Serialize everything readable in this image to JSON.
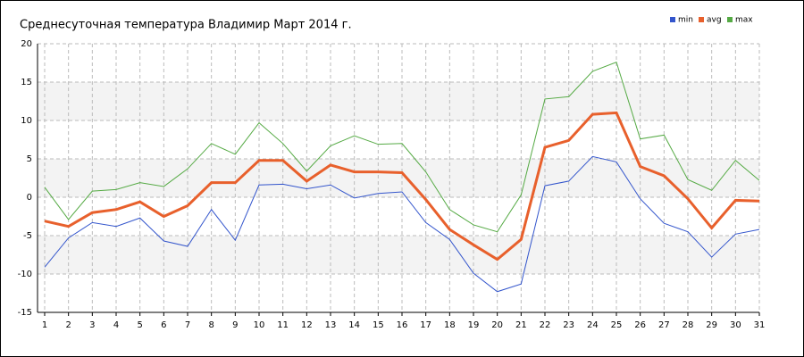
{
  "chart_data": {
    "type": "line",
    "title": "Среднесуточная температура Владимир  Март 2014 г.",
    "x": [
      1,
      2,
      3,
      4,
      5,
      6,
      7,
      8,
      9,
      10,
      11,
      12,
      13,
      14,
      15,
      16,
      17,
      18,
      19,
      20,
      21,
      22,
      23,
      24,
      25,
      26,
      27,
      28,
      29,
      30,
      31
    ],
    "xlim": [
      0.7,
      31
    ],
    "xticks": [
      1,
      2,
      3,
      4,
      5,
      6,
      7,
      8,
      9,
      10,
      11,
      12,
      13,
      14,
      15,
      16,
      17,
      18,
      19,
      20,
      21,
      22,
      23,
      24,
      25,
      26,
      27,
      28,
      29,
      30,
      31
    ],
    "ylim": [
      -15,
      20
    ],
    "yticks": [
      -15,
      -10,
      -5,
      0,
      5,
      10,
      15,
      20
    ],
    "grid": true,
    "legend": "top-right",
    "series": [
      {
        "name": "min",
        "color": "#3355cc",
        "values": [
          -9.1,
          -5.3,
          -3.3,
          -3.8,
          -2.7,
          -5.7,
          -6.4,
          -1.6,
          -5.6,
          1.6,
          1.7,
          1.1,
          1.6,
          -0.1,
          0.5,
          0.7,
          -3.3,
          -5.5,
          -9.9,
          -12.3,
          -11.3,
          1.5,
          2.1,
          5.3,
          4.6,
          -0.2,
          -3.4,
          -4.5,
          -7.8,
          -4.8,
          -4.2
        ]
      },
      {
        "name": "avg",
        "color": "#e8602c",
        "values": [
          -3.1,
          -3.8,
          -2.0,
          -1.6,
          -0.6,
          -2.5,
          -1.1,
          1.9,
          1.9,
          4.8,
          4.8,
          2.1,
          4.2,
          3.3,
          3.3,
          3.2,
          -0.3,
          -4.2,
          -6.2,
          -8.1,
          -5.5,
          6.5,
          7.4,
          10.8,
          11.0,
          4.0,
          2.8,
          -0.2,
          -4.0,
          -0.4,
          -0.5
        ]
      },
      {
        "name": "max",
        "color": "#55aa44",
        "values": [
          1.3,
          -2.9,
          0.8,
          1.0,
          1.9,
          1.4,
          3.7,
          7.0,
          5.6,
          9.7,
          7.0,
          3.4,
          6.7,
          8.0,
          6.9,
          7.0,
          3.3,
          -1.6,
          -3.6,
          -4.5,
          0.3,
          12.8,
          13.1,
          16.4,
          17.6,
          7.6,
          8.1,
          2.3,
          0.9,
          4.8,
          2.2
        ]
      }
    ]
  }
}
